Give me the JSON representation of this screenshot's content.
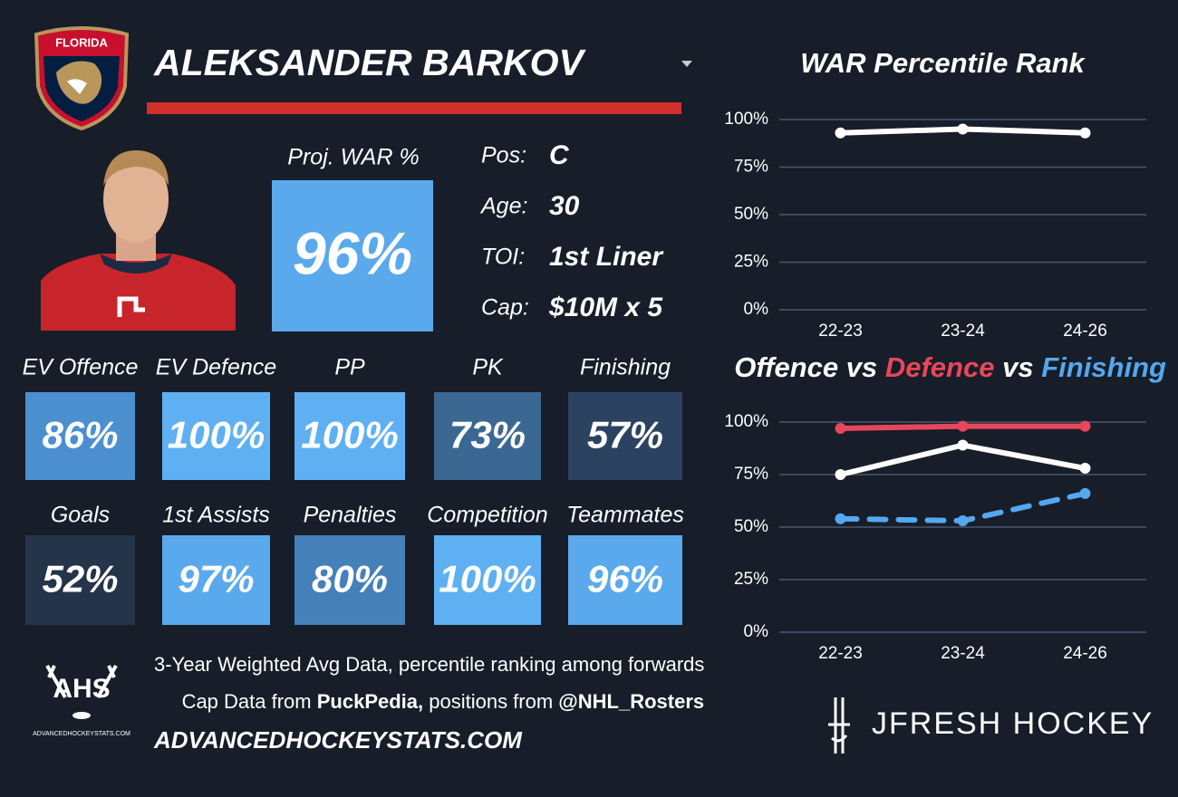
{
  "logos": {
    "team": "FLORIDA",
    "ahs": "AHS",
    "ahs_site": "ADVANCEDHOCKEYSTATS.COM",
    "brand": "JFRESH HOCKEY"
  },
  "player": {
    "name": "ALEKSANDER BARKOV"
  },
  "projection": {
    "label": "Proj. WAR %",
    "value": "96%",
    "color": "#5aa9ec"
  },
  "info": [
    {
      "label": "Pos:",
      "value": "C"
    },
    {
      "label": "Age:",
      "value": "30"
    },
    {
      "label": "TOI:",
      "value": "1st Liner"
    },
    {
      "label": "Cap:",
      "value": "$10M x 5"
    }
  ],
  "tiles": [
    {
      "label": "EV Offence",
      "value": "86%",
      "color": "#4b8fcf"
    },
    {
      "label": "EV Defence",
      "value": "100%",
      "color": "#5eb0f3"
    },
    {
      "label": "PP",
      "value": "100%",
      "color": "#5eb0f3"
    },
    {
      "label": "PK",
      "value": "73%",
      "color": "#3b6893"
    },
    {
      "label": "Finishing",
      "value": "57%",
      "color": "#2b4260"
    },
    {
      "label": "Goals",
      "value": "52%",
      "color": "#243449"
    },
    {
      "label": "1st Assists",
      "value": "97%",
      "color": "#5aa9ec"
    },
    {
      "label": "Penalties",
      "value": "80%",
      "color": "#4680b9"
    },
    {
      "label": "Competition",
      "value": "100%",
      "color": "#5eb0f3"
    },
    {
      "label": "Teammates",
      "value": "96%",
      "color": "#5aa9ec"
    }
  ],
  "footer": {
    "note": "3-Year Weighted Avg Data, percentile ranking among forwards",
    "source_parts": [
      "Cap Data from ",
      "PuckPedia,",
      " positions from ",
      "@NHL_Rosters"
    ],
    "site": "ADVANCEDHOCKEYSTATS.COM"
  },
  "chart_data": [
    {
      "type": "line",
      "title": "WAR Percentile Rank",
      "categories": [
        "22-23",
        "23-24",
        "24-26"
      ],
      "series": [
        {
          "name": "WAR",
          "color": "#ffffff",
          "values": [
            93,
            95,
            93
          ]
        }
      ],
      "ylim": [
        0,
        100
      ],
      "yticks": [
        {
          "value": 0,
          "label": "0%"
        },
        {
          "value": 25,
          "label": "25%"
        },
        {
          "value": 50,
          "label": "50%"
        },
        {
          "value": 75,
          "label": "75%"
        },
        {
          "value": 100,
          "label": "100%"
        }
      ],
      "grid": true
    },
    {
      "type": "line",
      "title_separator": "vs",
      "categories": [
        "22-23",
        "23-24",
        "24-26"
      ],
      "series": [
        {
          "name": "Offence",
          "color": "#ffffff",
          "values": [
            75,
            89,
            78
          ]
        },
        {
          "name": "Defence",
          "color": "#e8475b",
          "values": [
            97,
            98,
            98
          ]
        },
        {
          "name": "Finishing",
          "color": "#55a8ef",
          "values": [
            54,
            53,
            66
          ],
          "dashed": true
        }
      ],
      "ylim": [
        0,
        100
      ],
      "yticks": [
        {
          "value": 0,
          "label": "0%"
        },
        {
          "value": 25,
          "label": "25%"
        },
        {
          "value": 50,
          "label": "50%"
        },
        {
          "value": 75,
          "label": "75%"
        },
        {
          "value": 100,
          "label": "100%"
        }
      ],
      "grid": true
    }
  ]
}
